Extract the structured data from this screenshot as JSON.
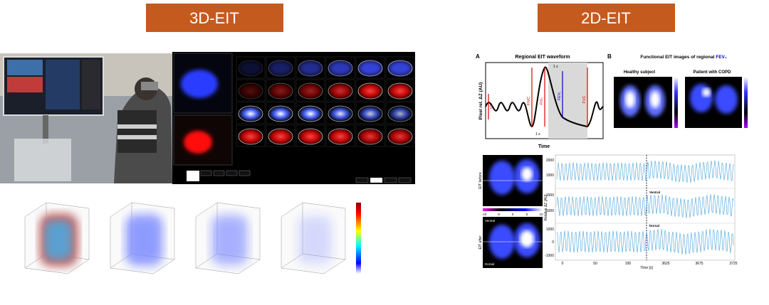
{
  "sections": {
    "left": "3D-EIT",
    "right": "2D-EIT"
  },
  "panel_a": {
    "letter": "A",
    "title": "Regional EIT waveform",
    "y_label": "Pixel rel. ΔZ (AU)",
    "x_label": "Time",
    "vt": "VT",
    "fivc": "FIVC",
    "fiv1": "FIV₁",
    "fev1": "FEV₁",
    "fvc": "FVC",
    "one_s_top": "1 s",
    "one_s_bottom": "1 s"
  },
  "panel_b": {
    "letter": "B",
    "title": "Functional EIT images of regional",
    "title_em": "FEV₁",
    "healthy": "Healthy subject",
    "copd": "Patient with COPD"
  },
  "bottom": {
    "before": "EIT before",
    "after": "EIT after",
    "ventral": "Ventral",
    "dorsal": "Dorsal",
    "colorbar_ticks": [
      "-10",
      "-5",
      "0",
      "5",
      "10"
    ],
    "y_label": "Relative ΔZ [AU]",
    "x_label": "Time [s]",
    "x_ticks": [
      "0",
      "50",
      "100",
      "3625",
      "3675",
      "3725"
    ],
    "y_ticks": [
      "2000",
      "1000",
      "1500",
      "1000",
      "1000",
      "0",
      "-1000"
    ],
    "trace_ventral": "Ventral",
    "trace_dorsal": "Dorsal"
  }
}
